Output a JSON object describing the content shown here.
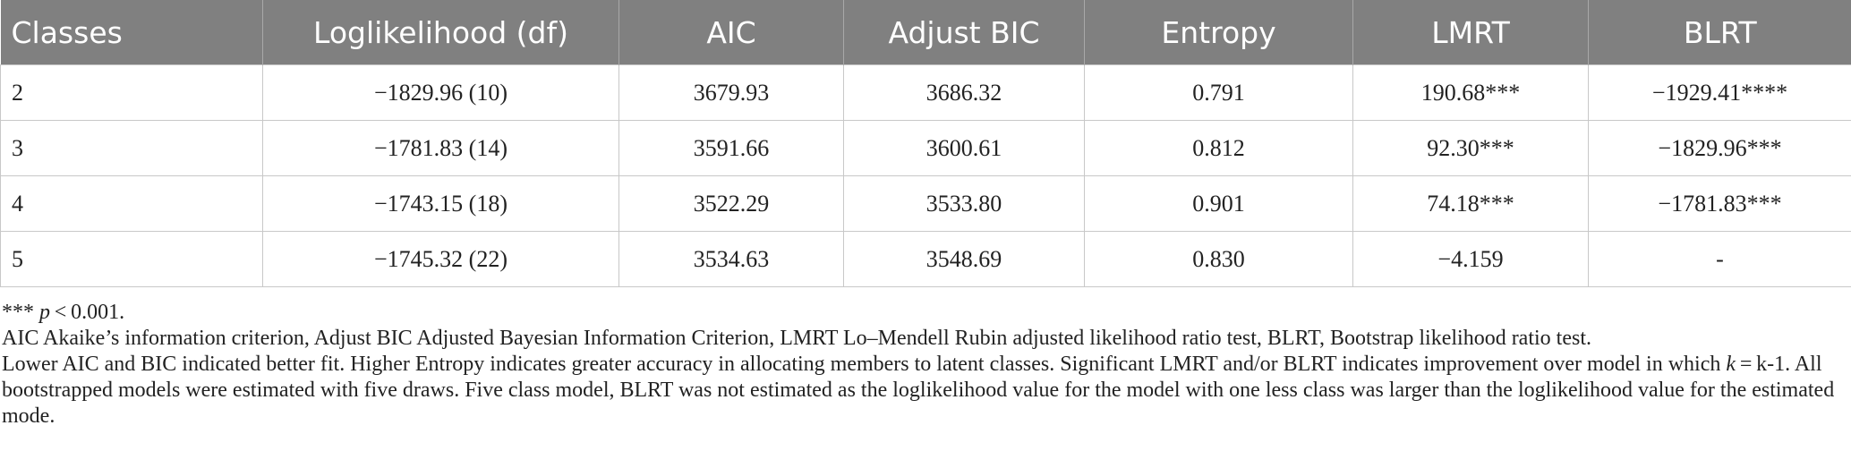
{
  "table": {
    "header": [
      "Classes",
      "Loglikelihood (df)",
      "AIC",
      "Adjust BIC",
      "Entropy",
      "LMRT",
      "BLRT"
    ],
    "rows": [
      [
        "2",
        "−1829.96 (10)",
        "3679.93",
        "3686.32",
        "0.791",
        "190.68***",
        "−1929.41****"
      ],
      [
        "3",
        "−1781.83 (14)",
        "3591.66",
        "3600.61",
        "0.812",
        "92.30***",
        "−1829.96***"
      ],
      [
        "4",
        "−1743.15 (18)",
        "3522.29",
        "3533.80",
        "0.901",
        "74.18***",
        "−1781.83***"
      ],
      [
        "5",
        "−1745.32 (22)",
        "3534.63",
        "3548.69",
        "0.830",
        "−4.159",
        "-"
      ]
    ]
  },
  "notes": [
    [
      "*** ",
      "p",
      " < 0.001."
    ],
    [
      "AIC Akaike’s information criterion, Adjust BIC Adjusted Bayesian Information Criterion, LMRT Lo–Mendell Rubin adjusted likelihood ratio test, BLRT, Bootstrap likelihood ratio test."
    ],
    [
      "Lower AIC and BIC indicated better fit. Higher Entropy indicates greater accuracy in allocating members to latent classes. Significant LMRT and/or BLRT indicates improvement over model in which ",
      "k",
      " = k-1. All bootstrapped models were estimated with five draws. Five class model, BLRT was not estimated as the loglikelihood value for the model with one less class was larger than the loglikelihood value for the estimated mode."
    ]
  ]
}
